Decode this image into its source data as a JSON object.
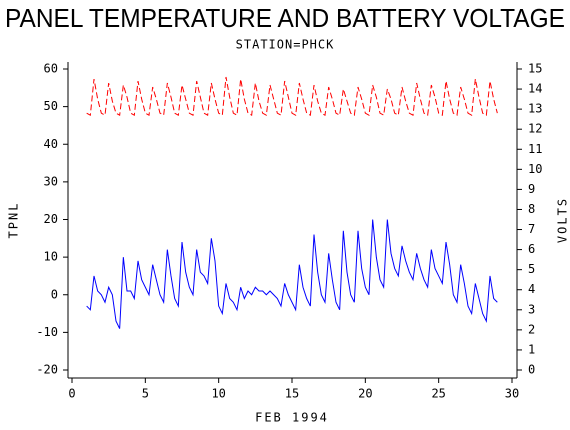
{
  "chart_data": {
    "type": "line",
    "title": "PANEL TEMPERATURE AND BATTERY VOLTAGE",
    "subtitle": "STATION=PHCK",
    "x_label": "FEB 1994",
    "y_label": "TPNL",
    "y2_label": "VOLTS",
    "x": [
      1,
      1.25,
      1.5,
      1.75,
      2,
      2.25,
      2.5,
      2.75,
      3,
      3.25,
      3.5,
      3.75,
      4,
      4.25,
      4.5,
      4.75,
      5,
      5.25,
      5.5,
      5.75,
      6,
      6.25,
      6.5,
      6.75,
      7,
      7.25,
      7.5,
      7.75,
      8,
      8.25,
      8.5,
      8.75,
      9,
      9.25,
      9.5,
      9.75,
      10,
      10.25,
      10.5,
      10.75,
      11,
      11.25,
      11.5,
      11.75,
      12,
      12.25,
      12.5,
      12.75,
      13,
      13.25,
      13.5,
      13.75,
      14,
      14.25,
      14.5,
      14.75,
      15,
      15.25,
      15.5,
      15.75,
      16,
      16.25,
      16.5,
      16.75,
      17,
      17.25,
      17.5,
      17.75,
      18,
      18.25,
      18.5,
      18.75,
      19,
      19.25,
      19.5,
      19.75,
      20,
      20.25,
      20.5,
      20.75,
      21,
      21.25,
      21.5,
      21.75,
      22,
      22.25,
      22.5,
      22.75,
      23,
      23.25,
      23.5,
      23.75,
      24,
      24.25,
      24.5,
      24.75,
      25,
      25.25,
      25.5,
      25.75,
      26,
      26.25,
      26.5,
      26.75,
      27,
      27.25,
      27.5,
      27.75,
      28,
      28.25,
      28.5,
      28.75,
      29
    ],
    "series": [
      {
        "name": "TPNL",
        "color": "#0000ff",
        "dashed": false,
        "values": [
          -3,
          -4,
          5,
          1,
          0,
          -2,
          2,
          0,
          -7,
          -9,
          10,
          1,
          1,
          -1,
          9,
          4,
          2,
          0,
          8,
          4,
          0,
          -2,
          12,
          5,
          -1,
          -3,
          14,
          6,
          2,
          0,
          12,
          6,
          5,
          3,
          15,
          9,
          -3,
          -5,
          3,
          -1,
          -2,
          -4,
          2,
          -1,
          1,
          0,
          2,
          1,
          1,
          0,
          1,
          0,
          -1,
          -3,
          3,
          0,
          -2,
          -4,
          8,
          2,
          -1,
          -3,
          16,
          6,
          0,
          -2,
          11,
          4,
          -2,
          -4,
          17,
          6,
          0,
          -2,
          17,
          7,
          2,
          0,
          20,
          10,
          4,
          2,
          20,
          11,
          7,
          5,
          13,
          9,
          6,
          4,
          11,
          7,
          4,
          2,
          12,
          7,
          5,
          3,
          14,
          8,
          0,
          -2,
          8,
          3,
          -3,
          -5,
          3,
          -1,
          -5,
          -7,
          5,
          -1,
          -2
        ]
      },
      {
        "name": "VOLTS",
        "color": "#ff0000",
        "dashed": true,
        "axis": "y2",
        "values": [
          12.8,
          12.7,
          14.5,
          13.5,
          12.8,
          12.7,
          14.3,
          13.4,
          12.8,
          12.7,
          14.2,
          13.6,
          12.8,
          12.7,
          14.4,
          13.5,
          12.8,
          12.7,
          14.1,
          13.5,
          12.8,
          12.7,
          14.3,
          13.6,
          12.8,
          12.7,
          14.2,
          13.5,
          12.8,
          12.7,
          14.4,
          13.6,
          12.8,
          12.7,
          14.3,
          13.5,
          12.8,
          12.7,
          14.6,
          13.6,
          12.8,
          12.7,
          14.5,
          13.5,
          12.8,
          12.7,
          14.3,
          13.4,
          12.8,
          12.7,
          14.2,
          13.5,
          12.8,
          12.7,
          14.4,
          13.6,
          12.8,
          12.7,
          14.3,
          13.5,
          12.8,
          12.7,
          14.2,
          13.4,
          12.8,
          12.7,
          14.1,
          13.5,
          12.8,
          12.7,
          14.0,
          13.4,
          12.8,
          12.7,
          14.1,
          13.5,
          12.8,
          12.7,
          14.2,
          13.6,
          12.8,
          12.7,
          14.0,
          13.5,
          12.8,
          12.7,
          14.1,
          13.4,
          12.8,
          12.7,
          14.3,
          13.5,
          12.8,
          12.7,
          14.2,
          13.6,
          12.8,
          12.7,
          14.4,
          13.5,
          12.8,
          12.7,
          14.1,
          13.5,
          12.8,
          12.7,
          14.5,
          13.6,
          12.8,
          12.7,
          14.4,
          13.5,
          12.8
        ]
      }
    ],
    "xlim": [
      0,
      30
    ],
    "xticks": [
      0,
      5,
      10,
      15,
      20,
      25,
      30
    ],
    "ylim": [
      -20,
      60
    ],
    "yticks": [
      -20,
      -10,
      0,
      10,
      20,
      30,
      40,
      50,
      60
    ],
    "y2lim": [
      0,
      15
    ],
    "y2ticks": [
      0,
      1,
      2,
      3,
      4,
      5,
      6,
      7,
      8,
      9,
      10,
      11,
      12,
      13,
      14,
      15
    ]
  }
}
